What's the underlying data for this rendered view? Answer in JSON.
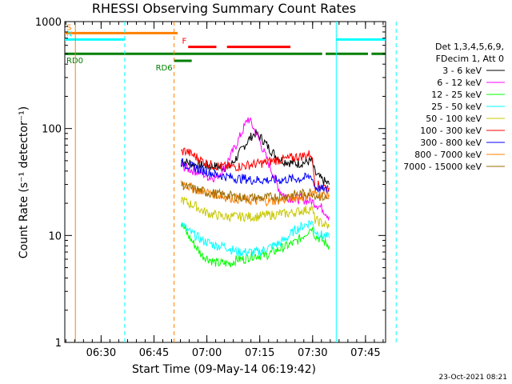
{
  "chart_data": {
    "type": "line",
    "title": "RHESSI Observing Summary Count Rates",
    "xlabel": "Start Time (09-May-14 06:19:42)",
    "ylabel": "Count Rate (s⁻¹ detector⁻¹)",
    "yscale": "log",
    "ylim": [
      1,
      1000
    ],
    "xlim_minutes": [
      0,
      91
    ],
    "x_ticks": [
      {
        "label": "06:30",
        "minute": 10.3
      },
      {
        "label": "06:45",
        "minute": 25.3
      },
      {
        "label": "07:00",
        "minute": 40.3
      },
      {
        "label": "07:15",
        "minute": 55.3
      },
      {
        "label": "07:30",
        "minute": 70.3
      },
      {
        "label": "07:45",
        "minute": 85.3
      }
    ],
    "y_ticks": [
      {
        "label": "1",
        "value": 1
      },
      {
        "label": "10",
        "value": 10
      },
      {
        "label": "100",
        "value": 100
      },
      {
        "label": "1000",
        "value": 1000
      }
    ],
    "legend_header": [
      "Det 1,3,4,5,6,9,",
      "FDecim 1, Att 0"
    ],
    "legend_position": "right",
    "series": [
      {
        "name": "3 - 6 keV",
        "color": "#000000",
        "points": [
          [
            33,
            50
          ],
          [
            37,
            46
          ],
          [
            41,
            45
          ],
          [
            45,
            43
          ],
          [
            47,
            45
          ],
          [
            49,
            55
          ],
          [
            51,
            70
          ],
          [
            53,
            85
          ],
          [
            54,
            90
          ],
          [
            56,
            80
          ],
          [
            58,
            65
          ],
          [
            60,
            55
          ],
          [
            62,
            50
          ],
          [
            64,
            48
          ],
          [
            66,
            47
          ],
          [
            68,
            48
          ],
          [
            70,
            50
          ],
          [
            71,
            38
          ],
          [
            73,
            33
          ],
          [
            75,
            30
          ]
        ]
      },
      {
        "name": "6 - 12 keV",
        "color": "#ff00ff",
        "points": [
          [
            33,
            45
          ],
          [
            35,
            42
          ],
          [
            37,
            40
          ],
          [
            39,
            38
          ],
          [
            41,
            35
          ],
          [
            43,
            35
          ],
          [
            45,
            42
          ],
          [
            47,
            55
          ],
          [
            49,
            75
          ],
          [
            51,
            105
          ],
          [
            52,
            125
          ],
          [
            53,
            110
          ],
          [
            55,
            80
          ],
          [
            57,
            55
          ],
          [
            59,
            38
          ],
          [
            61,
            26
          ],
          [
            63,
            23
          ],
          [
            65,
            22
          ],
          [
            67,
            22
          ],
          [
            69,
            21
          ],
          [
            70,
            21
          ],
          [
            71,
            20
          ],
          [
            73,
            18
          ],
          [
            75,
            15
          ]
        ]
      },
      {
        "name": "12 - 25 keV",
        "color": "#00ff00",
        "points": [
          [
            33,
            13
          ],
          [
            35,
            10
          ],
          [
            37,
            8
          ],
          [
            39,
            6.5
          ],
          [
            41,
            6
          ],
          [
            43,
            5.5
          ],
          [
            45,
            5.5
          ],
          [
            47,
            5.5
          ],
          [
            49,
            6
          ],
          [
            51,
            6
          ],
          [
            53,
            6.5
          ],
          [
            55,
            6.5
          ],
          [
            57,
            6.5
          ],
          [
            59,
            7
          ],
          [
            61,
            7.5
          ],
          [
            63,
            8
          ],
          [
            65,
            8.5
          ],
          [
            67,
            9.5
          ],
          [
            69,
            11
          ],
          [
            70,
            12
          ],
          [
            71,
            10
          ],
          [
            73,
            9
          ],
          [
            75,
            8
          ]
        ]
      },
      {
        "name": "25 - 50 keV",
        "color": "#00ffff",
        "points": [
          [
            33,
            13
          ],
          [
            35,
            11
          ],
          [
            37,
            10
          ],
          [
            39,
            9
          ],
          [
            41,
            8.5
          ],
          [
            43,
            8
          ],
          [
            45,
            8
          ],
          [
            47,
            7.5
          ],
          [
            49,
            7
          ],
          [
            51,
            7
          ],
          [
            53,
            7
          ],
          [
            55,
            7
          ],
          [
            57,
            7.5
          ],
          [
            59,
            8
          ],
          [
            61,
            8.5
          ],
          [
            63,
            9.5
          ],
          [
            65,
            11
          ],
          [
            67,
            12
          ],
          [
            69,
            13
          ],
          [
            70,
            13.5
          ],
          [
            71,
            11
          ],
          [
            73,
            10
          ],
          [
            75,
            9.5
          ]
        ]
      },
      {
        "name": "50 - 100 keV",
        "color": "#c8c800",
        "points": [
          [
            33,
            22
          ],
          [
            35,
            20
          ],
          [
            37,
            19
          ],
          [
            39,
            17
          ],
          [
            41,
            16
          ],
          [
            43,
            15.5
          ],
          [
            45,
            15
          ],
          [
            47,
            15
          ],
          [
            49,
            15
          ],
          [
            51,
            15
          ],
          [
            53,
            15
          ],
          [
            55,
            15
          ],
          [
            57,
            15.5
          ],
          [
            59,
            15.5
          ],
          [
            61,
            16
          ],
          [
            63,
            16
          ],
          [
            65,
            16.5
          ],
          [
            67,
            17
          ],
          [
            69,
            17.5
          ],
          [
            70,
            18
          ],
          [
            71,
            14
          ],
          [
            73,
            13
          ],
          [
            75,
            12
          ]
        ]
      },
      {
        "name": "100 - 300 keV",
        "color": "#ff0000",
        "points": [
          [
            33,
            60
          ],
          [
            34,
            62
          ],
          [
            35,
            60
          ],
          [
            37,
            55
          ],
          [
            39,
            50
          ],
          [
            41,
            46
          ],
          [
            43,
            45
          ],
          [
            45,
            44
          ],
          [
            47,
            44
          ],
          [
            49,
            44
          ],
          [
            51,
            45
          ],
          [
            53,
            46
          ],
          [
            55,
            47
          ],
          [
            57,
            48
          ],
          [
            59,
            50
          ],
          [
            61,
            51
          ],
          [
            63,
            52
          ],
          [
            65,
            54
          ],
          [
            67,
            55
          ],
          [
            69,
            57
          ],
          [
            70,
            58
          ],
          [
            71,
            30
          ],
          [
            73,
            29
          ],
          [
            75,
            28
          ]
        ]
      },
      {
        "name": "300 - 800 keV",
        "color": "#0000ff",
        "points": [
          [
            33,
            48
          ],
          [
            35,
            45
          ],
          [
            37,
            43
          ],
          [
            39,
            41
          ],
          [
            41,
            39
          ],
          [
            43,
            37
          ],
          [
            45,
            36
          ],
          [
            47,
            35
          ],
          [
            49,
            34
          ],
          [
            51,
            34
          ],
          [
            53,
            33
          ],
          [
            55,
            33
          ],
          [
            57,
            33
          ],
          [
            59,
            33
          ],
          [
            61,
            33
          ],
          [
            63,
            33.5
          ],
          [
            65,
            34
          ],
          [
            67,
            34
          ],
          [
            69,
            35
          ],
          [
            70,
            36
          ],
          [
            71,
            28
          ],
          [
            73,
            27
          ],
          [
            75,
            26
          ]
        ]
      },
      {
        "name": "800 - 7000 keV",
        "color": "#ff8000",
        "points": [
          [
            33,
            32
          ],
          [
            35,
            29
          ],
          [
            37,
            27
          ],
          [
            39,
            26
          ],
          [
            41,
            25
          ],
          [
            43,
            24
          ],
          [
            45,
            23
          ],
          [
            47,
            22.5
          ],
          [
            49,
            22
          ],
          [
            51,
            21.5
          ],
          [
            53,
            21
          ],
          [
            55,
            21
          ],
          [
            57,
            21
          ],
          [
            59,
            21
          ],
          [
            61,
            21.5
          ],
          [
            63,
            22
          ],
          [
            65,
            22.5
          ],
          [
            67,
            23
          ],
          [
            69,
            23.5
          ],
          [
            70,
            24
          ],
          [
            71,
            25
          ],
          [
            73,
            24
          ],
          [
            75,
            24
          ]
        ]
      },
      {
        "name": "7000 - 15000 keV",
        "color": "#9b6b00",
        "points": [
          [
            33,
            30
          ],
          [
            35,
            28
          ],
          [
            37,
            27
          ],
          [
            39,
            26
          ],
          [
            41,
            25
          ],
          [
            43,
            24.5
          ],
          [
            45,
            24
          ],
          [
            47,
            23.5
          ],
          [
            49,
            23
          ],
          [
            51,
            22.5
          ],
          [
            53,
            22.5
          ],
          [
            55,
            22.5
          ],
          [
            57,
            22.5
          ],
          [
            59,
            23
          ],
          [
            61,
            23
          ],
          [
            63,
            23.5
          ],
          [
            65,
            24
          ],
          [
            67,
            24.5
          ],
          [
            69,
            25
          ],
          [
            70,
            25.5
          ],
          [
            71,
            24
          ],
          [
            73,
            23
          ],
          [
            75,
            22
          ]
        ]
      }
    ],
    "flag_bars": [
      {
        "label": "S",
        "color": "#ff8000",
        "level": 780,
        "segments": [
          [
            0,
            32
          ]
        ]
      },
      {
        "label": "N",
        "color": "#00ffff",
        "level": 680,
        "segments": [
          [
            0,
            17
          ],
          [
            77,
            91
          ]
        ]
      },
      {
        "label": "F",
        "color": "#ff0000",
        "level": 580,
        "segments": [
          [
            35,
            43
          ],
          [
            46,
            64
          ]
        ]
      },
      {
        "label": "RD0",
        "color": "#007f00",
        "level": 500,
        "segments": [
          [
            0,
            73
          ],
          [
            74,
            86
          ],
          [
            87,
            93
          ]
        ]
      },
      {
        "label": "RD6",
        "color": "#007f00",
        "level": 430,
        "segments": [
          [
            31,
            36
          ]
        ]
      }
    ],
    "vlines": [
      {
        "color": "#ff8000",
        "style": "solid",
        "minute": 3
      },
      {
        "color": "#00ffff",
        "style": "dashed",
        "minute": 17
      },
      {
        "color": "#ff8000",
        "style": "dashed",
        "minute": 31
      },
      {
        "color": "#00ffff",
        "style": "solid",
        "minute": 77
      },
      {
        "color": "#00ffff",
        "style": "dashed",
        "minute": 94
      }
    ],
    "grid": false
  },
  "footer_date": "23-Oct-2021 08:21"
}
